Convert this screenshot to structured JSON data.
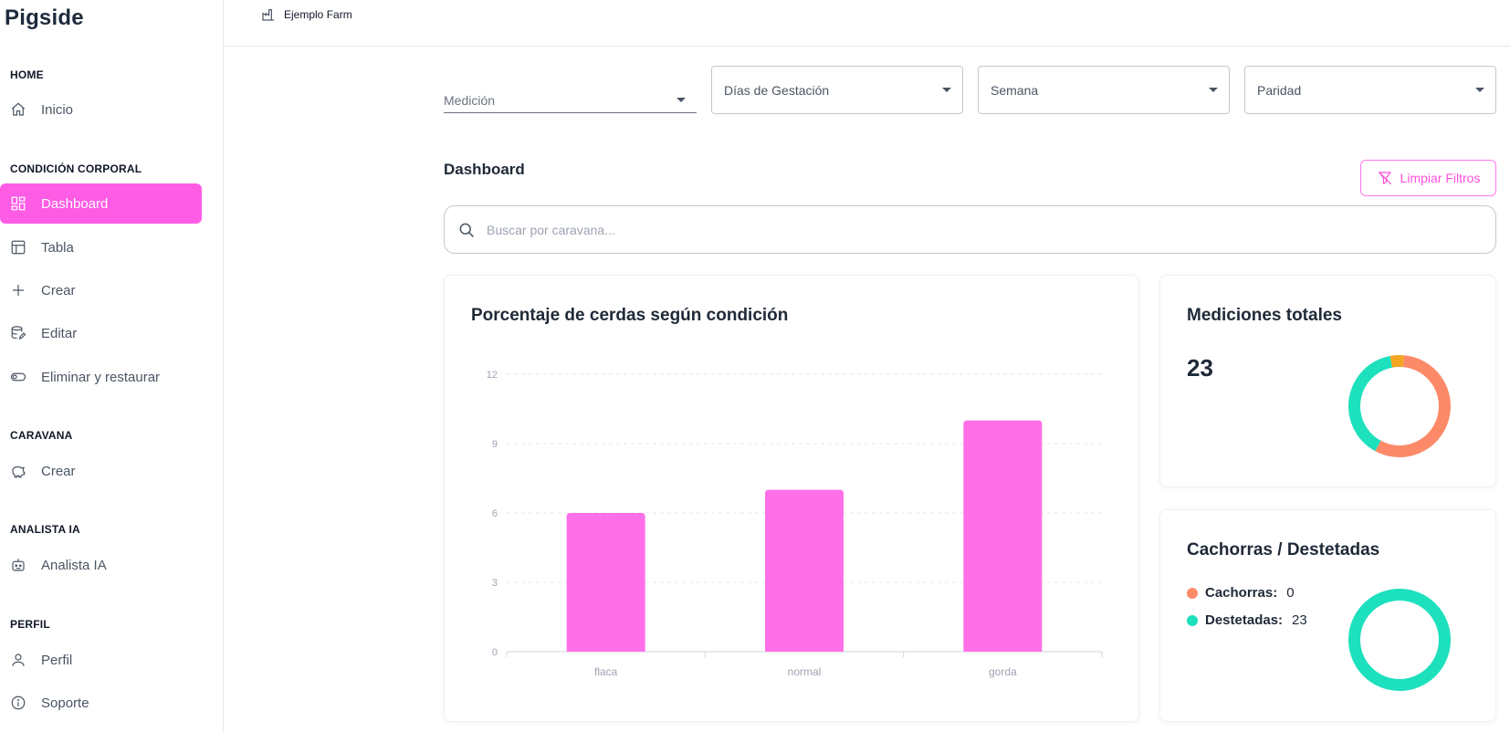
{
  "brand": "Pigside",
  "sidebar": {
    "sections": {
      "home": "HOME",
      "condicion": "CONDICIÓN CORPORAL",
      "caravana": "CARAVANA",
      "analista": "ANALISTA IA",
      "perfil": "PERFIL"
    },
    "items": {
      "inicio": "Inicio",
      "dashboard": "Dashboard",
      "tabla": "Tabla",
      "crear": "Crear",
      "editar": "Editar",
      "eliminar": "Eliminar y restaurar",
      "caravana_crear": "Crear",
      "analista": "Analista IA",
      "perfil": "Perfil",
      "soporte": "Soporte"
    }
  },
  "header": {
    "farm": "Ejemplo Farm"
  },
  "filters": {
    "medicion": "Medición",
    "dias": "Días de Gestación",
    "semana": "Semana",
    "paridad": "Paridad"
  },
  "dashboard": {
    "title": "Dashboard",
    "clear_label": "Limpiar Filtros",
    "search_placeholder": "Buscar por caravana..."
  },
  "bar_card": {
    "title": "Porcentaje de cerdas según condición"
  },
  "totals": {
    "title": "Mediciones totales",
    "value": "23"
  },
  "puppies": {
    "title": "Cachorras / Destetadas",
    "cachorras_label": "Cachorras:",
    "cachorras_value": "0",
    "destetadas_label": "Destetadas:",
    "destetadas_value": "23"
  },
  "colors": {
    "accent": "#ff5ce6",
    "bar": "#ff70e8",
    "orange": "#fc8a68",
    "teal": "#1de0bd",
    "yellow": "#f5a623"
  },
  "chart_data": [
    {
      "type": "bar",
      "title": "Porcentaje de cerdas según condición",
      "categories": [
        "flaca",
        "normal",
        "gorda"
      ],
      "values": [
        6,
        7,
        10
      ],
      "ylim": [
        0,
        12
      ],
      "yticks": [
        0,
        3,
        6,
        9,
        12
      ],
      "grid": true
    },
    {
      "type": "pie",
      "title": "Mediciones totales",
      "donut": true,
      "labels": [
        "",
        "",
        ""
      ],
      "values": [
        13,
        9,
        1
      ],
      "colors": [
        "#fc8a68",
        "#1de0bd",
        "#f5a623"
      ]
    },
    {
      "type": "pie",
      "title": "Cachorras / Destetadas",
      "donut": true,
      "labels": [
        "Cachorras",
        "Destetadas"
      ],
      "values": [
        0,
        23
      ],
      "colors": [
        "#fc8a68",
        "#1de0bd"
      ]
    }
  ]
}
